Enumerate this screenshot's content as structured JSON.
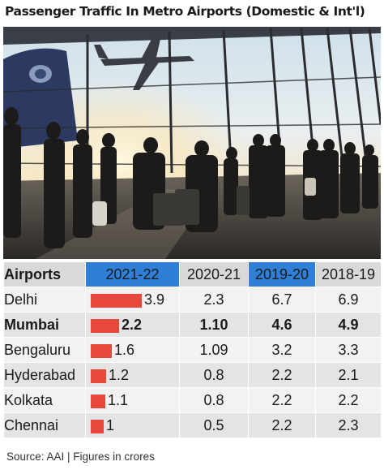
{
  "title": "Passenger Traffic In Metro Airports (Domestic & Int'l)",
  "source": "Source: AAI | Figures in crores",
  "colors": {
    "bar": "#e8483b",
    "header_highlight": "#2f7fd6",
    "header_plain": "#d9d9d9"
  },
  "chart_data": {
    "type": "table",
    "columns": [
      "Airports",
      "2021-22",
      "2020-21",
      "2019-20",
      "2018-19"
    ],
    "bar_column": "2021-22",
    "bar_max": 4.6,
    "rows": [
      {
        "airport": "Delhi",
        "2021-22": "3.9",
        "2020-21": "2.3",
        "2019-20": "6.7",
        "2018-19": "6.9",
        "bold": false
      },
      {
        "airport": "Mumbai",
        "2021-22": "2.2",
        "2020-21": "1.10",
        "2019-20": "4.6",
        "2018-19": "4.9",
        "bold": true
      },
      {
        "airport": "Bengaluru",
        "2021-22": "1.6",
        "2020-21": "1.09",
        "2019-20": "3.2",
        "2018-19": "3.3",
        "bold": false
      },
      {
        "airport": "Hyderabad",
        "2021-22": "1.2",
        "2020-21": "0.8",
        "2019-20": "2.2",
        "2018-19": "2.1",
        "bold": false
      },
      {
        "airport": "Kolkata",
        "2021-22": "1.1",
        "2020-21": "0.8",
        "2019-20": "2.2",
        "2018-19": "2.2",
        "bold": false
      },
      {
        "airport": "Chennai",
        "2021-22": "1",
        "2020-21": "0.5",
        "2019-20": "2.2",
        "2018-19": "2.3",
        "bold": false
      }
    ]
  }
}
